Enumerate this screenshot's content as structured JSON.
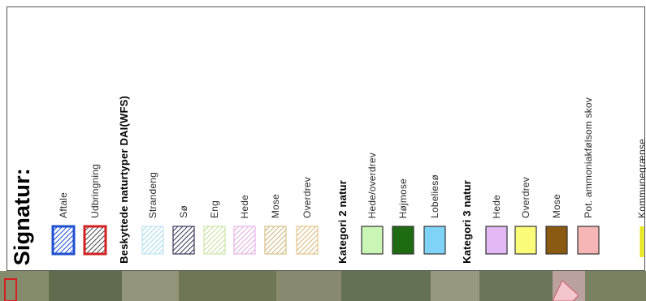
{
  "legend": {
    "title": "Signatur:",
    "items": [
      {
        "label": "Aftale",
        "style": "hatch",
        "fill": "#ffffff",
        "stroke": "#1f4fd1",
        "hatch_color": "#1f4fd1",
        "heavy_border": true
      },
      {
        "label": "Udbringning",
        "style": "hatch",
        "fill": "#ffffff",
        "stroke": "#d42020",
        "hatch_color": "#4d4d4d",
        "heavy_border": true
      },
      {
        "label": "Beskyttede naturtyper DAI(WFS)",
        "style": "header"
      },
      {
        "label": "Strandeng",
        "style": "hatch",
        "fill": "#ffffff",
        "stroke": "#bfe3f0",
        "hatch_color": "#a6d8ea"
      },
      {
        "label": "Sø",
        "style": "hatch",
        "fill": "#ffffff",
        "stroke": "#3a3a5a",
        "hatch_color": "#3a3a5a"
      },
      {
        "label": "Eng",
        "style": "hatch",
        "fill": "#ffffff",
        "stroke": "#cde6a8",
        "hatch_color": "#c4e09c"
      },
      {
        "label": "Hede",
        "style": "hatch",
        "fill": "#ffffff",
        "stroke": "#e6b6e6",
        "hatch_color": "#e0aee0"
      },
      {
        "label": "Mose",
        "style": "hatch",
        "fill": "#ffffff",
        "stroke": "#d7c08a",
        "hatch_color": "#cdb47a"
      },
      {
        "label": "Overdrev",
        "style": "hatch",
        "fill": "#ffffff",
        "stroke": "#e3c58e",
        "hatch_color": "#dbb87c"
      },
      {
        "label": "Kategori 2 natur",
        "style": "header"
      },
      {
        "label": "Hede/overdrev",
        "style": "solid",
        "fill": "#c9f5b5",
        "stroke": "#333333"
      },
      {
        "label": "Højmose",
        "style": "solid",
        "fill": "#1f6b12",
        "stroke": "#333333"
      },
      {
        "label": "Lobeliesø",
        "style": "solid",
        "fill": "#7fd3f7",
        "stroke": "#333333"
      },
      {
        "label": "Kategori 3 natur",
        "style": "header"
      },
      {
        "label": "Hede",
        "style": "solid",
        "fill": "#e3b8f5",
        "stroke": "#333333"
      },
      {
        "label": "Overdrev",
        "style": "solid",
        "fill": "#fbfb7a",
        "stroke": "#333333"
      },
      {
        "label": "Mose",
        "style": "solid",
        "fill": "#8a5a12",
        "stroke": "#333333"
      },
      {
        "label": "Pot. ammoniakfølsom skov",
        "style": "solid",
        "fill": "#f7b6b6",
        "stroke": "#333333"
      },
      {
        "label": "Kommunegrænse",
        "style": "line",
        "fill": "#ffffff",
        "stroke": "#e8e820"
      }
    ]
  },
  "colors": {
    "border": "#555555",
    "map_base": "#6f7a5c"
  }
}
